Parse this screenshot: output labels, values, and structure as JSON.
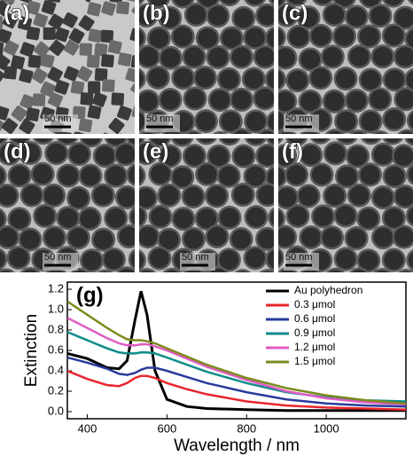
{
  "panels": [
    {
      "label": "(a)",
      "scale_bar": "50 nm"
    },
    {
      "label": "(b)",
      "scale_bar": "50 nm"
    },
    {
      "label": "(c)",
      "scale_bar": "50 nm"
    },
    {
      "label": "(d)",
      "scale_bar": "50 nm"
    },
    {
      "label": "(e)",
      "scale_bar": "50 nm"
    },
    {
      "label": "(f)",
      "scale_bar": "50 nm"
    }
  ],
  "chart_data": {
    "type": "line",
    "annotation": "(g)",
    "x_label": "Wavelength / nm",
    "y_label": "Extinction",
    "x": [
      350,
      400,
      450,
      480,
      500,
      520,
      535,
      550,
      570,
      600,
      650,
      700,
      800,
      900,
      1000,
      1100,
      1200
    ],
    "series": [
      {
        "name": "Au polyhedron",
        "color": "#000000",
        "values": [
          0.57,
          0.52,
          0.43,
          0.42,
          0.5,
          0.9,
          1.18,
          0.95,
          0.4,
          0.12,
          0.05,
          0.03,
          0.02,
          0.01,
          0.01,
          0.01,
          0.01
        ]
      },
      {
        "name": "0.3 μmol",
        "color": "#e8262c",
        "values": [
          0.4,
          0.32,
          0.26,
          0.25,
          0.28,
          0.33,
          0.35,
          0.35,
          0.33,
          0.28,
          0.22,
          0.17,
          0.1,
          0.06,
          0.04,
          0.03,
          0.02
        ]
      },
      {
        "name": "0.6 μmol",
        "color": "#2a3b9c",
        "values": [
          0.53,
          0.48,
          0.42,
          0.37,
          0.36,
          0.38,
          0.41,
          0.43,
          0.43,
          0.4,
          0.34,
          0.28,
          0.19,
          0.12,
          0.08,
          0.06,
          0.05
        ]
      },
      {
        "name": "0.9 μmol",
        "color": "#0f8c8a",
        "values": [
          0.78,
          0.7,
          0.62,
          0.58,
          0.57,
          0.57,
          0.58,
          0.58,
          0.57,
          0.53,
          0.46,
          0.39,
          0.28,
          0.19,
          0.14,
          0.11,
          0.1
        ]
      },
      {
        "name": "1.2 μmol",
        "color": "#e05cc4",
        "values": [
          0.92,
          0.82,
          0.72,
          0.67,
          0.65,
          0.65,
          0.66,
          0.66,
          0.64,
          0.6,
          0.52,
          0.44,
          0.31,
          0.2,
          0.13,
          0.09,
          0.07
        ]
      },
      {
        "name": "1.5 μmol",
        "color": "#7f8a1e",
        "values": [
          1.08,
          0.95,
          0.82,
          0.75,
          0.71,
          0.7,
          0.7,
          0.69,
          0.67,
          0.62,
          0.54,
          0.46,
          0.33,
          0.23,
          0.16,
          0.11,
          0.08
        ]
      }
    ],
    "xlim": [
      350,
      1200
    ],
    "ylim": [
      -0.07,
      1.27
    ],
    "xticks": [
      400,
      600,
      800,
      1000
    ],
    "yticks": [
      {
        "value": 0,
        "label": "0.0"
      },
      0.2,
      0.4,
      0.6,
      0.8,
      {
        "value": 1,
        "label": "1.0"
      },
      1.2
    ],
    "legend": "upper-right"
  }
}
